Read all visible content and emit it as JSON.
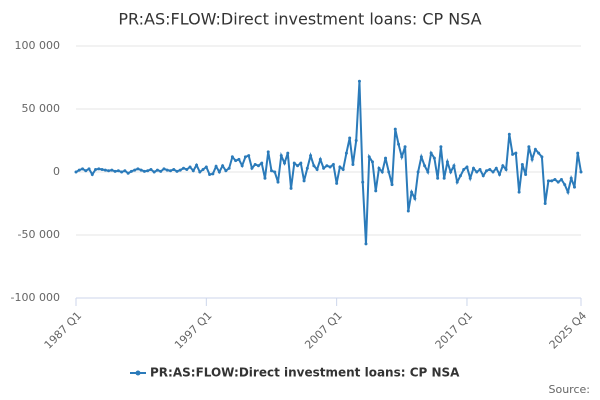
{
  "chart_data": {
    "type": "line",
    "title": "PR:AS:FLOW:Direct investment loans: CP NSA",
    "source_label": "Source:",
    "categories": [
      "1987 Q1",
      null,
      null,
      null,
      null,
      null,
      null,
      null,
      null,
      null,
      null,
      null,
      null,
      null,
      null,
      null,
      null,
      null,
      null,
      null,
      null,
      null,
      null,
      null,
      null,
      null,
      null,
      null,
      null,
      null,
      null,
      null,
      null,
      null,
      null,
      null,
      null,
      null,
      null,
      null,
      "1997 Q1",
      null,
      null,
      null,
      null,
      null,
      null,
      null,
      null,
      null,
      null,
      null,
      null,
      null,
      null,
      null,
      null,
      null,
      null,
      null,
      null,
      null,
      null,
      null,
      null,
      null,
      null,
      null,
      null,
      null,
      null,
      null,
      null,
      null,
      null,
      null,
      null,
      null,
      null,
      null,
      "2007 Q1",
      null,
      null,
      null,
      null,
      null,
      null,
      null,
      null,
      null,
      null,
      null,
      null,
      null,
      null,
      null,
      null,
      null,
      null,
      null,
      null,
      null,
      null,
      null,
      null,
      null,
      null,
      null,
      null,
      null,
      null,
      null,
      null,
      null,
      null,
      null,
      null,
      null,
      null,
      null,
      "2017 Q1",
      null,
      null,
      null,
      null,
      null,
      null,
      null,
      null,
      null,
      null,
      null,
      null,
      null,
      null,
      null,
      null,
      null,
      null,
      null,
      null,
      null,
      null,
      null,
      null,
      null,
      null,
      null,
      null,
      null,
      null,
      null,
      null,
      null,
      null,
      "2025 Q4"
    ],
    "series": [
      {
        "name": "PR:AS:FLOW:Direct investment loans: CP NSA",
        "color": "#2b7bba",
        "values": [
          0,
          1500,
          2500,
          1000,
          2500,
          -2000,
          2000,
          2500,
          2000,
          1500,
          1000,
          1500,
          500,
          1000,
          0,
          1000,
          -1000,
          500,
          1500,
          2500,
          1500,
          500,
          1000,
          2000,
          0,
          1500,
          500,
          2500,
          1500,
          1000,
          2000,
          500,
          1500,
          3000,
          2000,
          4000,
          1000,
          5500,
          0,
          2000,
          4000,
          -2000,
          -1500,
          4500,
          0,
          5000,
          1000,
          3000,
          12000,
          9000,
          10000,
          5000,
          12000,
          13000,
          3000,
          6000,
          5000,
          7000,
          -5000,
          16000,
          1000,
          0,
          -8000,
          13000,
          7000,
          15000,
          -13000,
          7000,
          5000,
          7000,
          -7000,
          3000,
          13000,
          5000,
          2000,
          10000,
          3000,
          5000,
          4000,
          6000,
          -9000,
          4000,
          2000,
          15000,
          27000,
          6000,
          25000,
          72000,
          -8000,
          -57000,
          12000,
          8000,
          -15000,
          3000,
          0,
          11000,
          0,
          -10000,
          34000,
          22000,
          12000,
          20000,
          -31000,
          -16000,
          -21000,
          0,
          12000,
          5000,
          0,
          15000,
          11000,
          -5000,
          20000,
          -5000,
          8000,
          0,
          5000,
          -8000,
          -3000,
          2000,
          4000,
          -5000,
          3000,
          0,
          2000,
          -3000,
          1000,
          2000,
          0,
          3000,
          -2000,
          5000,
          2000,
          30000,
          14000,
          15000,
          -16000,
          6000,
          -2000,
          20000,
          10000,
          18000,
          15000,
          12000,
          -25000,
          -7000,
          -7000,
          -6000,
          -8000,
          -6000,
          -10000,
          -16000,
          -5000,
          -12000,
          15000,
          0
        ]
      }
    ],
    "ylim": [
      -100000,
      100000
    ],
    "yticks": [
      {
        "value": -100000,
        "label": "-100 000"
      },
      {
        "value": -50000,
        "label": "-50 000"
      },
      0,
      {
        "value": 50000,
        "label": "50 000"
      },
      {
        "value": 100000,
        "label": "100 000"
      }
    ],
    "grid": true
  }
}
